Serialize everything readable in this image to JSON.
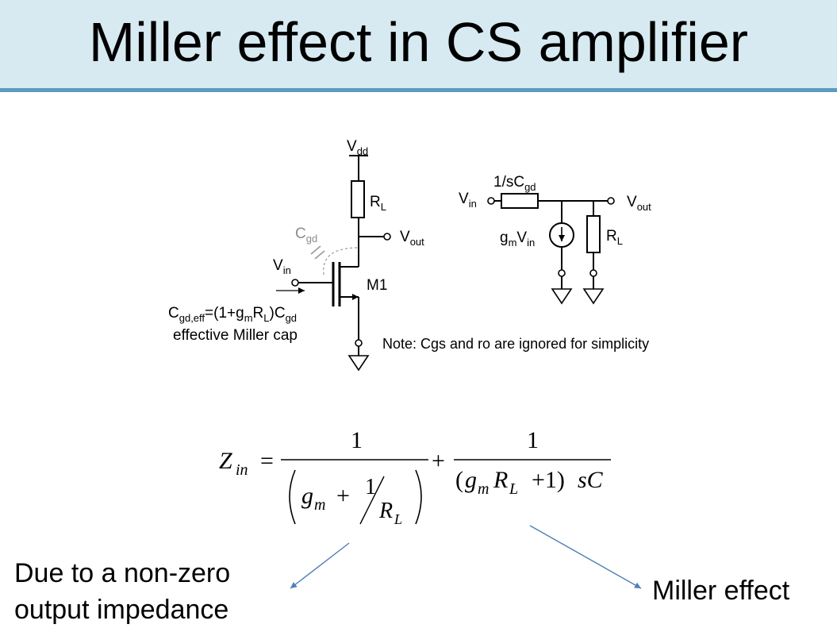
{
  "slide": {
    "title": "Miller effect in CS amplifier"
  },
  "circuit": {
    "vdd": {
      "main": "V",
      "sub": "dd"
    },
    "rl": {
      "main": "R",
      "sub": "L"
    },
    "vout": {
      "main": "V",
      "sub": "out"
    },
    "cgd": {
      "main": "C",
      "sub": "gd"
    },
    "vin": {
      "main": "V",
      "sub": "in"
    },
    "m1": "M1",
    "miller_cap": "Cgd,eff=(1+gmRL)Cgd",
    "miller_note": "effective Miller cap"
  },
  "small_signal": {
    "impedance": "1/sCgd",
    "vin": {
      "main": "V",
      "sub": "in"
    },
    "vout": {
      "main": "V",
      "sub": "out"
    },
    "gm_vin": "gmVin",
    "rl": {
      "main": "R",
      "sub": "L"
    }
  },
  "note": "Note: Cgs and ro are ignored for simplicity",
  "equation": {
    "text": "Zin = 1 / (gm + 1/RL) + 1 / ((gmRL + 1) sC)"
  },
  "annotations": {
    "left": [
      "Due to a non-zero",
      "output impedance"
    ],
    "right": "Miller effect"
  },
  "colors": {
    "title_bg": "#d7eaf1",
    "title_rule": "#5b9bbd",
    "arrow": "#4f7fb5",
    "cgd_label": "#8c8c8c"
  }
}
